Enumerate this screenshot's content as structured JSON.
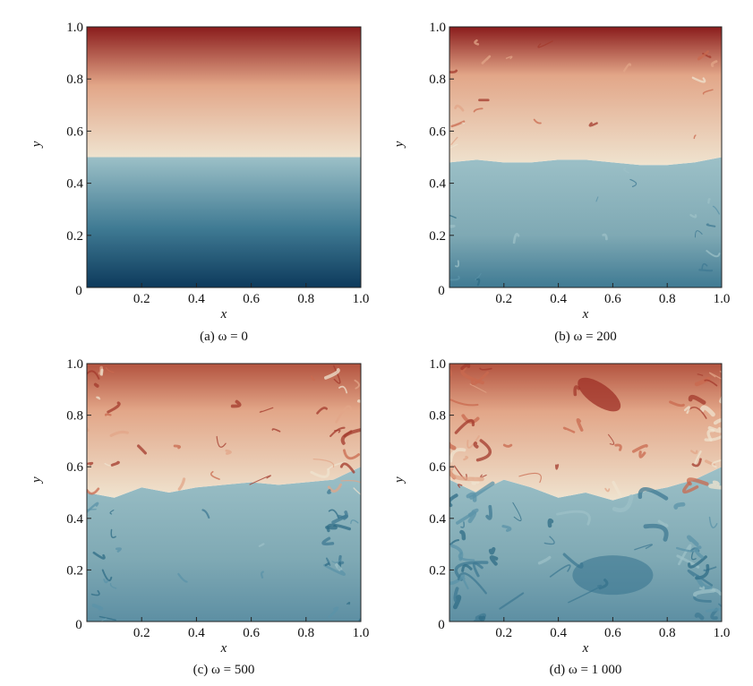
{
  "chart_data": [
    {
      "type": "heatmap",
      "caption": "(a) ω = 0",
      "xlabel": "x",
      "ylabel": "y",
      "xlim": [
        0,
        1.0
      ],
      "ylim": [
        0,
        1.0
      ],
      "xticks": [
        "0.2",
        "0.4",
        "0.6",
        "0.8",
        "1.0"
      ],
      "yticks": [
        "0.2",
        "0.4",
        "0.6",
        "0.8",
        "1.0"
      ],
      "origin_label": "0",
      "field": {
        "interface_y": [
          0.5,
          0.5,
          0.5,
          0.5,
          0.5,
          0.5,
          0.5,
          0.5,
          0.5,
          0.5,
          0.5
        ],
        "mixing_level": 0
      }
    },
    {
      "type": "heatmap",
      "caption": "(b) ω = 200",
      "xlabel": "x",
      "ylabel": "y",
      "xlim": [
        0,
        1.0
      ],
      "ylim": [
        0,
        1.0
      ],
      "xticks": [
        "0.2",
        "0.4",
        "0.6",
        "0.8",
        "1.0"
      ],
      "yticks": [
        "0.2",
        "0.4",
        "0.6",
        "0.8",
        "1.0"
      ],
      "origin_label": "0",
      "field": {
        "interface_y": [
          0.48,
          0.49,
          0.48,
          0.48,
          0.49,
          0.49,
          0.48,
          0.47,
          0.47,
          0.48,
          0.5
        ],
        "mixing_level": 1
      }
    },
    {
      "type": "heatmap",
      "caption": "(c) ω = 500",
      "xlabel": "x",
      "ylabel": "y",
      "xlim": [
        0,
        1.0
      ],
      "ylim": [
        0,
        1.0
      ],
      "xticks": [
        "0.2",
        "0.4",
        "0.6",
        "0.8",
        "1.0"
      ],
      "yticks": [
        "0.2",
        "0.4",
        "0.6",
        "0.8",
        "1.0"
      ],
      "origin_label": "0",
      "field": {
        "interface_y": [
          0.5,
          0.48,
          0.52,
          0.5,
          0.52,
          0.53,
          0.54,
          0.53,
          0.54,
          0.55,
          0.6
        ],
        "mixing_level": 2
      }
    },
    {
      "type": "heatmap",
      "caption": "(d) ω = 1 000",
      "xlabel": "x",
      "ylabel": "y",
      "xlim": [
        0,
        1.0
      ],
      "ylim": [
        0,
        1.0
      ],
      "xticks": [
        "0.2",
        "0.4",
        "0.6",
        "0.8",
        "1.0"
      ],
      "yticks": [
        "0.2",
        "0.4",
        "0.6",
        "0.8",
        "1.0"
      ],
      "origin_label": "0",
      "field": {
        "interface_y": [
          0.55,
          0.5,
          0.55,
          0.52,
          0.48,
          0.5,
          0.47,
          0.5,
          0.52,
          0.55,
          0.6
        ],
        "mixing_level": 3
      }
    }
  ],
  "colormap": {
    "low": "#0d3a5c",
    "mid_low": "#3f7a93",
    "mid_cold": "#9cc0c7",
    "neutral": "#efe3cf",
    "mid_warm": "#e2a688",
    "high": "#8a1c1c"
  }
}
